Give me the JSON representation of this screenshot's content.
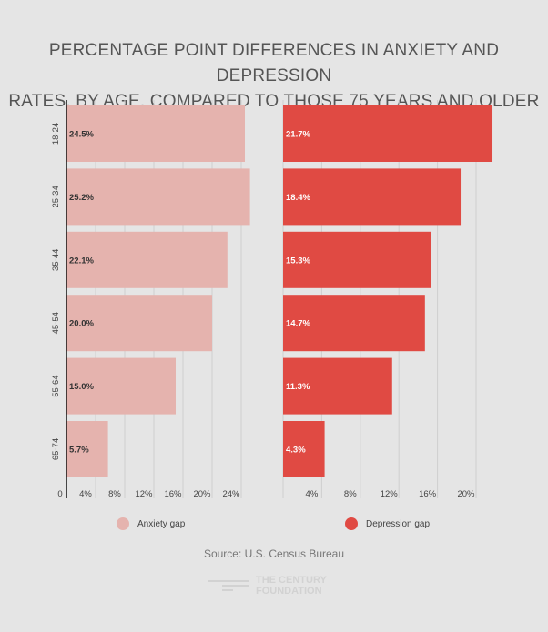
{
  "title_line1": "PERCENTAGE POINT DIFFERENCES IN ANXIETY AND DEPRESSION",
  "title_line2": "RATES, BY AGE, COMPARED TO THOSE 75 YEARS AND OLDER",
  "chart_data": {
    "type": "bar",
    "orientation": "horizontal",
    "categories": [
      "18-24",
      "25-34",
      "35-44",
      "45-54",
      "55-64",
      "65-74"
    ],
    "series": [
      {
        "name": "Anxiety gap",
        "values": [
          24.5,
          25.2,
          22.1,
          20.0,
          15.0,
          5.7
        ],
        "labels": [
          "24.5%",
          "25.2%",
          "22.1%",
          "20.0%",
          "15.0%",
          "5.7%"
        ],
        "color": "#e5b3ae",
        "ticks": [
          "0",
          "4%",
          "8%",
          "12%",
          "16%",
          "20%",
          "24%"
        ],
        "tick_values": [
          0,
          4,
          8,
          12,
          16,
          20,
          24
        ],
        "xlim": [
          0,
          26
        ]
      },
      {
        "name": "Depression gap",
        "values": [
          21.7,
          18.4,
          15.3,
          14.7,
          11.3,
          4.3
        ],
        "labels": [
          "21.7%",
          "18.4%",
          "15.3%",
          "14.7%",
          "11.3%",
          "4.3%"
        ],
        "color": "#e04a43",
        "ticks": [
          "4%",
          "8%",
          "12%",
          "16%",
          "20%"
        ],
        "tick_values": [
          4,
          8,
          12,
          16,
          20
        ],
        "xlim": [
          0,
          22
        ]
      }
    ],
    "grid": true,
    "legend_position": "bottom"
  },
  "source": "Source: U.S. Census Bureau",
  "logo_text_1": "THE CENTURY",
  "logo_text_2": "FOUNDATION"
}
